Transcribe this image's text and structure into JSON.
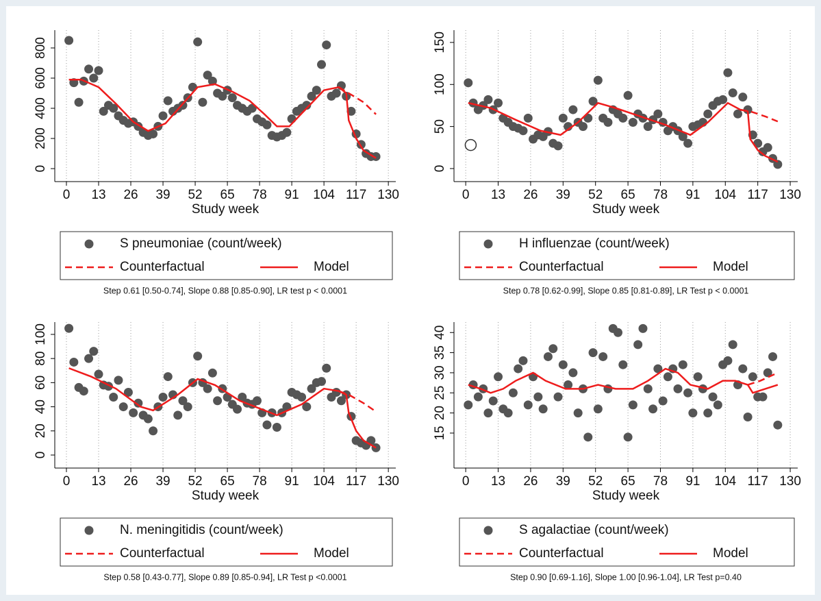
{
  "chart_data": [
    {
      "type": "scatter",
      "xlabel": "Study week",
      "note": "Step 0.61 [0.50-0.74], Slope 0.88 [0.85-0.90], LR test p < 0.0001",
      "xlim": [
        -4.7,
        133
      ],
      "xticks": [
        0,
        13,
        26,
        39,
        52,
        65,
        78,
        91,
        104,
        117,
        130
      ],
      "ylim": [
        -86,
        918
      ],
      "yticks": [
        0,
        200,
        400,
        600,
        800
      ],
      "grid": true,
      "series": [
        {
          "name": "S pneumoniae (count/week)",
          "color": "#555555",
          "mark": "dot",
          "x": [
            1,
            3,
            5,
            7,
            9,
            11,
            13,
            15,
            17,
            19,
            21,
            23,
            25,
            27,
            29,
            31,
            33,
            35,
            37,
            39,
            41,
            43,
            45,
            47,
            49,
            51,
            53,
            55,
            57,
            59,
            61,
            63,
            65,
            67,
            69,
            71,
            73,
            75,
            77,
            79,
            81,
            83,
            85,
            87,
            89,
            91,
            93,
            95,
            97,
            99,
            101,
            103,
            105,
            107,
            109,
            111,
            113,
            115,
            117,
            119,
            121,
            123,
            125
          ],
          "values": [
            850,
            570,
            440,
            580,
            660,
            600,
            650,
            380,
            420,
            400,
            350,
            320,
            300,
            310,
            280,
            240,
            220,
            230,
            280,
            350,
            450,
            380,
            400,
            420,
            470,
            540,
            840,
            440,
            620,
            580,
            500,
            480,
            520,
            470,
            420,
            400,
            380,
            400,
            330,
            310,
            290,
            220,
            210,
            220,
            240,
            330,
            380,
            400,
            420,
            480,
            520,
            690,
            820,
            480,
            500,
            550,
            480,
            380,
            230,
            160,
            100,
            80,
            80
          ]
        },
        {
          "name": "Counterfactual",
          "color": "#ee1c1c",
          "mark": "dash",
          "x": [
            110,
            113,
            117,
            120,
            125
          ],
          "values": [
            540,
            510,
            470,
            440,
            360
          ]
        },
        {
          "name": "Model",
          "color": "#ee1c1c",
          "mark": "line",
          "x": [
            1,
            6,
            13,
            20,
            27,
            33,
            40,
            47,
            53,
            60,
            67,
            74,
            80,
            85,
            90,
            97,
            104,
            110,
            113,
            114,
            117,
            120,
            125
          ],
          "values": [
            590,
            590,
            540,
            430,
            310,
            250,
            300,
            430,
            540,
            560,
            510,
            450,
            360,
            280,
            280,
            400,
            520,
            540,
            500,
            320,
            200,
            120,
            70
          ]
        }
      ]
    },
    {
      "type": "scatter",
      "xlabel": "Study week",
      "note": "Step 0.78 [0.62-0.99], Slope 0.85 [0.81-0.89], LR Test p < 0.0001",
      "xlim": [
        -4.7,
        133
      ],
      "xticks": [
        0,
        13,
        26,
        39,
        52,
        65,
        78,
        91,
        104,
        117,
        130
      ],
      "ylim": [
        -15.5,
        164.6
      ],
      "yticks": [
        0,
        50,
        100,
        150
      ],
      "grid": true,
      "open_points": {
        "x": [
          2
        ],
        "values": [
          28
        ]
      },
      "series": [
        {
          "name": "H influenzae (count/week)",
          "color": "#555555",
          "mark": "dot",
          "x": [
            1,
            3,
            5,
            7,
            9,
            11,
            13,
            15,
            17,
            19,
            21,
            23,
            25,
            27,
            29,
            31,
            33,
            35,
            37,
            39,
            41,
            43,
            45,
            47,
            49,
            51,
            53,
            55,
            57,
            59,
            61,
            63,
            65,
            67,
            69,
            71,
            73,
            75,
            77,
            79,
            81,
            83,
            85,
            87,
            89,
            91,
            93,
            95,
            97,
            99,
            101,
            103,
            105,
            107,
            109,
            111,
            113,
            115,
            117,
            119,
            121,
            123,
            125
          ],
          "values": [
            102,
            78,
            70,
            75,
            82,
            70,
            78,
            60,
            55,
            50,
            48,
            45,
            60,
            35,
            40,
            38,
            44,
            30,
            27,
            60,
            50,
            70,
            55,
            50,
            60,
            80,
            105,
            60,
            55,
            70,
            65,
            60,
            87,
            55,
            65,
            60,
            50,
            58,
            65,
            55,
            45,
            50,
            45,
            38,
            30,
            50,
            52,
            55,
            65,
            75,
            80,
            82,
            114,
            90,
            65,
            85,
            70,
            40,
            30,
            20,
            25,
            12,
            5
          ]
        },
        {
          "name": "Counterfactual",
          "color": "#ee1c1c",
          "mark": "dash",
          "x": [
            110,
            114,
            120,
            125
          ],
          "values": [
            70,
            68,
            62,
            56
          ]
        },
        {
          "name": "Model",
          "color": "#ee1c1c",
          "mark": "line",
          "x": [
            1,
            10,
            20,
            30,
            38,
            45,
            53,
            60,
            70,
            80,
            90,
            97,
            105,
            110,
            113,
            114,
            117,
            120,
            125
          ],
          "values": [
            78,
            72,
            58,
            45,
            40,
            55,
            78,
            72,
            62,
            52,
            40,
            55,
            78,
            70,
            68,
            35,
            22,
            15,
            8
          ]
        }
      ]
    },
    {
      "type": "scatter",
      "xlabel": "Study week",
      "note": "Step 0.58 [0.43-0.77], Slope 0.89 [0.85-0.94], LR Test p <0.0001",
      "xlim": [
        -4.7,
        133
      ],
      "xticks": [
        0,
        13,
        26,
        39,
        52,
        65,
        78,
        91,
        104,
        117,
        130
      ],
      "ylim": [
        -10.8,
        110.2
      ],
      "yticks": [
        0,
        20,
        40,
        60,
        80,
        100
      ],
      "grid": true,
      "series": [
        {
          "name": "N. meningitidis (count/week)",
          "color": "#555555",
          "mark": "dot",
          "x": [
            1,
            3,
            5,
            7,
            9,
            11,
            13,
            15,
            17,
            19,
            21,
            23,
            25,
            27,
            29,
            31,
            33,
            35,
            37,
            39,
            41,
            43,
            45,
            47,
            49,
            51,
            53,
            55,
            57,
            59,
            61,
            63,
            65,
            67,
            69,
            71,
            73,
            75,
            77,
            79,
            81,
            83,
            85,
            87,
            89,
            91,
            93,
            95,
            97,
            99,
            101,
            103,
            105,
            107,
            109,
            111,
            113,
            115,
            117,
            119,
            121,
            123,
            125
          ],
          "values": [
            105,
            77,
            56,
            53,
            80,
            86,
            67,
            58,
            57,
            48,
            62,
            40,
            52,
            35,
            43,
            33,
            30,
            20,
            40,
            48,
            65,
            50,
            33,
            45,
            40,
            60,
            82,
            60,
            55,
            68,
            45,
            55,
            48,
            42,
            38,
            48,
            43,
            42,
            45,
            35,
            25,
            35,
            23,
            35,
            40,
            52,
            50,
            48,
            40,
            55,
            60,
            61,
            72,
            48,
            52,
            45,
            50,
            32,
            12,
            10,
            8,
            12,
            6
          ]
        },
        {
          "name": "Counterfactual",
          "color": "#ee1c1c",
          "mark": "dash",
          "x": [
            110,
            114,
            120,
            125
          ],
          "values": [
            53,
            50,
            43,
            36
          ]
        },
        {
          "name": "Model",
          "color": "#ee1c1c",
          "mark": "line",
          "x": [
            1,
            10,
            20,
            30,
            35,
            45,
            53,
            60,
            70,
            80,
            85,
            95,
            104,
            110,
            113,
            114,
            117,
            120,
            125
          ],
          "values": [
            72,
            65,
            55,
            40,
            37,
            50,
            63,
            58,
            45,
            37,
            33,
            42,
            55,
            53,
            50,
            35,
            20,
            12,
            6
          ]
        }
      ]
    },
    {
      "type": "scatter",
      "xlabel": "Study week",
      "note": "Step 0.90 [0.69-1.16], Slope 1.00 [0.96-1.04], LR Test p=0.40",
      "xlim": [
        -4.7,
        133
      ],
      "xticks": [
        0,
        13,
        26,
        39,
        52,
        65,
        78,
        91,
        104,
        117,
        130
      ],
      "ylim": [
        6.3,
        42.6
      ],
      "yticks": [
        15,
        20,
        25,
        30,
        35,
        40
      ],
      "grid": true,
      "series": [
        {
          "name": "S agalactiae (count/week)",
          "color": "#555555",
          "mark": "dot",
          "x": [
            1,
            3,
            5,
            7,
            9,
            11,
            13,
            15,
            17,
            19,
            21,
            23,
            25,
            27,
            29,
            31,
            33,
            35,
            37,
            39,
            41,
            43,
            45,
            47,
            49,
            51,
            53,
            55,
            57,
            59,
            61,
            63,
            65,
            67,
            69,
            71,
            73,
            75,
            77,
            79,
            81,
            83,
            85,
            87,
            89,
            91,
            93,
            95,
            97,
            99,
            101,
            103,
            105,
            107,
            109,
            111,
            113,
            115,
            117,
            119,
            121,
            123,
            125
          ],
          "values": [
            22,
            27,
            24,
            26,
            20,
            23,
            29,
            21,
            20,
            25,
            31,
            33,
            22,
            29,
            24,
            21,
            34,
            36,
            24,
            32,
            27,
            30,
            20,
            26,
            14,
            35,
            21,
            34,
            26,
            41,
            40,
            32,
            14,
            22,
            37,
            41,
            26,
            21,
            31,
            23,
            29,
            31,
            26,
            32,
            25,
            20,
            29,
            26,
            20,
            24,
            22,
            32,
            33,
            37,
            27,
            31,
            19,
            29,
            24,
            24,
            30,
            34,
            17
          ]
        },
        {
          "name": "Counterfactual",
          "color": "#ee1c1c",
          "mark": "dash",
          "x": [
            113,
            118,
            125
          ],
          "values": [
            27,
            28,
            30
          ]
        },
        {
          "name": "Model",
          "color": "#ee1c1c",
          "mark": "line",
          "x": [
            1,
            6,
            10,
            15,
            20,
            27,
            32,
            40,
            47,
            53,
            60,
            67,
            73,
            80,
            85,
            90,
            97,
            103,
            108,
            113,
            115,
            120,
            125
          ],
          "values": [
            27,
            26,
            25,
            26,
            28,
            30,
            28,
            26,
            26,
            27,
            26,
            26,
            28,
            31,
            30,
            27,
            26,
            28,
            28,
            27,
            25,
            26,
            27
          ]
        }
      ]
    }
  ]
}
